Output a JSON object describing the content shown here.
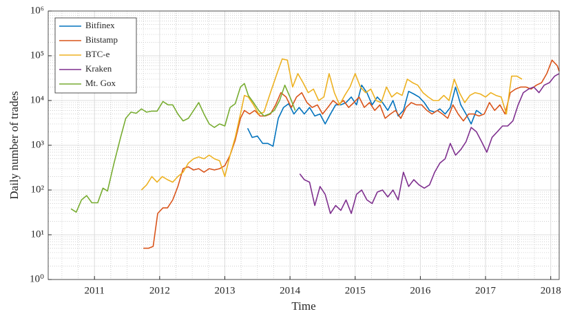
{
  "chart_data": {
    "type": "line",
    "xlabel": "Time",
    "ylabel": "Daily number of trades",
    "log_y": true,
    "grid": true,
    "legend": "upper left",
    "xlim": [
      2010.29,
      2018.13
    ],
    "xticks": [
      2011,
      2012,
      2013,
      2014,
      2015,
      2016,
      2017,
      2018
    ],
    "ylim": [
      1,
      1000000
    ],
    "yticks": [
      {
        "value": 1,
        "label": "10⁰"
      },
      {
        "value": 10,
        "label": "10¹"
      },
      {
        "value": 100,
        "label": "10²"
      },
      {
        "value": 1000,
        "label": "10³"
      },
      {
        "value": 10000,
        "label": "10⁴"
      },
      {
        "value": 100000,
        "label": "10⁵"
      },
      {
        "value": 1000000,
        "label": "10⁶"
      }
    ],
    "series": [
      {
        "name": "Bitfinex",
        "color": "#0072bd",
        "x": [
          2013.35,
          2013.42,
          2013.5,
          2013.58,
          2013.66,
          2013.74,
          2013.82,
          2013.9,
          2013.98,
          2014.06,
          2014.14,
          2014.22,
          2014.3,
          2014.38,
          2014.46,
          2014.54,
          2014.62,
          2014.7,
          2014.78,
          2014.86,
          2014.94,
          2015.02,
          2015.1,
          2015.18,
          2015.26,
          2015.34,
          2015.42,
          2015.5,
          2015.58,
          2015.66,
          2015.74,
          2015.82,
          2015.9,
          2015.98,
          2016.06,
          2016.14,
          2016.22,
          2016.3,
          2016.38,
          2016.46,
          2016.54,
          2016.62,
          2016.7,
          2016.78,
          2016.86,
          2016.94
        ],
        "values": [
          2400,
          1500,
          1600,
          1100,
          1100,
          950,
          4000,
          7000,
          8500,
          5000,
          7000,
          5000,
          7000,
          4500,
          5000,
          3000,
          5000,
          8000,
          8000,
          9000,
          12000,
          8000,
          22000,
          15000,
          8000,
          12000,
          9000,
          6000,
          10000,
          4500,
          6000,
          16000,
          14000,
          12000,
          9000,
          6000,
          5500,
          6500,
          5000,
          7000,
          20000,
          8000,
          5000,
          3000,
          6000,
          5000
        ]
      },
      {
        "name": "Bitstamp",
        "color": "#d95319",
        "x": [
          2011.75,
          2011.83,
          2011.9,
          2011.97,
          2012.05,
          2012.12,
          2012.2,
          2012.28,
          2012.36,
          2012.44,
          2012.52,
          2012.6,
          2012.68,
          2012.76,
          2012.84,
          2012.92,
          2013.0,
          2013.08,
          2013.16,
          2013.24,
          2013.3,
          2013.38,
          2013.46,
          2013.54,
          2013.62,
          2013.7,
          2013.78,
          2013.86,
          2013.94,
          2014.02,
          2014.1,
          2014.18,
          2014.26,
          2014.34,
          2014.42,
          2014.5,
          2014.58,
          2014.66,
          2014.74,
          2014.82,
          2014.9,
          2014.98,
          2015.06,
          2015.14,
          2015.22,
          2015.3,
          2015.38,
          2015.46,
          2015.54,
          2015.62,
          2015.7,
          2015.78,
          2015.86,
          2015.94,
          2016.02,
          2016.1,
          2016.18,
          2016.26,
          2016.34,
          2016.42,
          2016.5,
          2016.58,
          2016.66,
          2016.74,
          2016.82,
          2016.9,
          2016.98,
          2017.06,
          2017.14,
          2017.22,
          2017.3,
          2017.38,
          2017.46,
          2017.54,
          2017.62,
          2017.7,
          2017.78,
          2017.86,
          2017.94,
          2018.02,
          2018.1,
          2018.13
        ],
        "values": [
          5,
          5,
          5.5,
          30,
          40,
          40,
          60,
          120,
          300,
          330,
          280,
          300,
          250,
          300,
          280,
          300,
          350,
          600,
          1300,
          4000,
          6000,
          5000,
          6000,
          4500,
          4500,
          5000,
          8000,
          15000,
          12000,
          7000,
          12000,
          15000,
          9000,
          7000,
          8000,
          5000,
          7000,
          10000,
          8000,
          10000,
          7000,
          9000,
          12000,
          7000,
          9000,
          6000,
          8000,
          4000,
          5000,
          6000,
          4000,
          7000,
          9000,
          8000,
          8000,
          6000,
          5000,
          6000,
          5000,
          4000,
          8000,
          5000,
          3500,
          5000,
          5000,
          4500,
          5000,
          9000,
          6000,
          8000,
          5000,
          15000,
          18000,
          20000,
          20000,
          18000,
          22000,
          25000,
          40000,
          80000,
          60000,
          45000
        ]
      },
      {
        "name": "BTC-e",
        "color": "#edb120",
        "x": [
          2011.72,
          2011.8,
          2011.88,
          2011.96,
          2012.04,
          2012.12,
          2012.2,
          2012.28,
          2012.36,
          2012.44,
          2012.52,
          2012.6,
          2012.68,
          2012.76,
          2012.84,
          2012.92,
          2013.0,
          2013.08,
          2013.16,
          2013.24,
          2013.3,
          2013.36,
          2013.44,
          2013.52,
          2013.6,
          2013.7,
          2013.8,
          2013.88,
          2013.96,
          2014.04,
          2014.12,
          2014.2,
          2014.28,
          2014.36,
          2014.44,
          2014.52,
          2014.6,
          2014.68,
          2014.76,
          2014.84,
          2014.92,
          2015.0,
          2015.08,
          2015.16,
          2015.24,
          2015.32,
          2015.4,
          2015.48,
          2015.56,
          2015.64,
          2015.72,
          2015.8,
          2015.88,
          2015.96,
          2016.04,
          2016.12,
          2016.2,
          2016.28,
          2016.36,
          2016.44,
          2016.52,
          2016.6,
          2016.68,
          2016.76,
          2016.84,
          2016.92,
          2017.0,
          2017.08,
          2017.16,
          2017.24,
          2017.32,
          2017.4,
          2017.48,
          2017.56
        ],
        "values": [
          100,
          130,
          200,
          150,
          200,
          170,
          150,
          200,
          250,
          400,
          500,
          550,
          500,
          600,
          500,
          450,
          200,
          600,
          1500,
          5000,
          13000,
          12000,
          8000,
          5000,
          5500,
          15000,
          40000,
          85000,
          80000,
          20000,
          40000,
          25000,
          15000,
          18000,
          10000,
          12000,
          40000,
          15000,
          8000,
          13000,
          20000,
          40000,
          20000,
          15000,
          18000,
          10000,
          9000,
          20000,
          12000,
          15000,
          13000,
          30000,
          25000,
          22000,
          15000,
          12000,
          10000,
          10000,
          13000,
          10000,
          30000,
          15000,
          9000,
          13000,
          15000,
          14000,
          12000,
          15000,
          13000,
          12000,
          5000,
          35000,
          35000,
          30000
        ]
      },
      {
        "name": "Kraken",
        "color": "#7e2f8e",
        "x": [
          2014.15,
          2014.22,
          2014.3,
          2014.38,
          2014.46,
          2014.54,
          2014.62,
          2014.7,
          2014.78,
          2014.86,
          2014.94,
          2015.02,
          2015.1,
          2015.18,
          2015.26,
          2015.34,
          2015.42,
          2015.5,
          2015.58,
          2015.66,
          2015.74,
          2015.82,
          2015.9,
          2015.98,
          2016.06,
          2016.14,
          2016.22,
          2016.3,
          2016.38,
          2016.46,
          2016.54,
          2016.62,
          2016.7,
          2016.78,
          2016.86,
          2016.94,
          2017.02,
          2017.1,
          2017.18,
          2017.26,
          2017.34,
          2017.42,
          2017.5,
          2017.58,
          2017.66,
          2017.74,
          2017.82,
          2017.9,
          2017.98,
          2018.06,
          2018.13
        ],
        "values": [
          230,
          170,
          150,
          45,
          120,
          80,
          30,
          45,
          35,
          60,
          30,
          80,
          100,
          60,
          50,
          90,
          100,
          70,
          100,
          60,
          250,
          120,
          170,
          130,
          110,
          130,
          250,
          400,
          500,
          1100,
          600,
          800,
          1200,
          2500,
          2000,
          1200,
          700,
          1500,
          2000,
          2700,
          2700,
          3500,
          8000,
          15000,
          18000,
          20000,
          15000,
          22000,
          25000,
          35000,
          40000
        ]
      },
      {
        "name": "Mt. Gox",
        "color": "#77ac30",
        "x": [
          2010.64,
          2010.72,
          2010.8,
          2010.88,
          2010.96,
          2011.05,
          2011.13,
          2011.2,
          2011.3,
          2011.4,
          2011.48,
          2011.56,
          2011.64,
          2011.72,
          2011.8,
          2011.88,
          2011.96,
          2012.05,
          2012.13,
          2012.2,
          2012.28,
          2012.36,
          2012.44,
          2012.52,
          2012.6,
          2012.68,
          2012.76,
          2012.84,
          2012.92,
          2013.0,
          2013.08,
          2013.16,
          2013.24,
          2013.3,
          2013.36,
          2013.44,
          2013.52,
          2013.6,
          2013.68,
          2013.76,
          2013.84,
          2013.92,
          2014.0,
          2014.08
        ],
        "values": [
          38,
          32,
          60,
          75,
          52,
          52,
          110,
          95,
          400,
          1500,
          4000,
          5500,
          5200,
          6500,
          5500,
          5800,
          5800,
          9500,
          8000,
          8000,
          5000,
          3500,
          4000,
          6000,
          9000,
          5000,
          3000,
          2500,
          3000,
          2700,
          7000,
          8500,
          20000,
          24000,
          13000,
          9000,
          6000,
          4500,
          5000,
          6000,
          10000,
          22000,
          12000,
          6000
        ]
      }
    ]
  }
}
